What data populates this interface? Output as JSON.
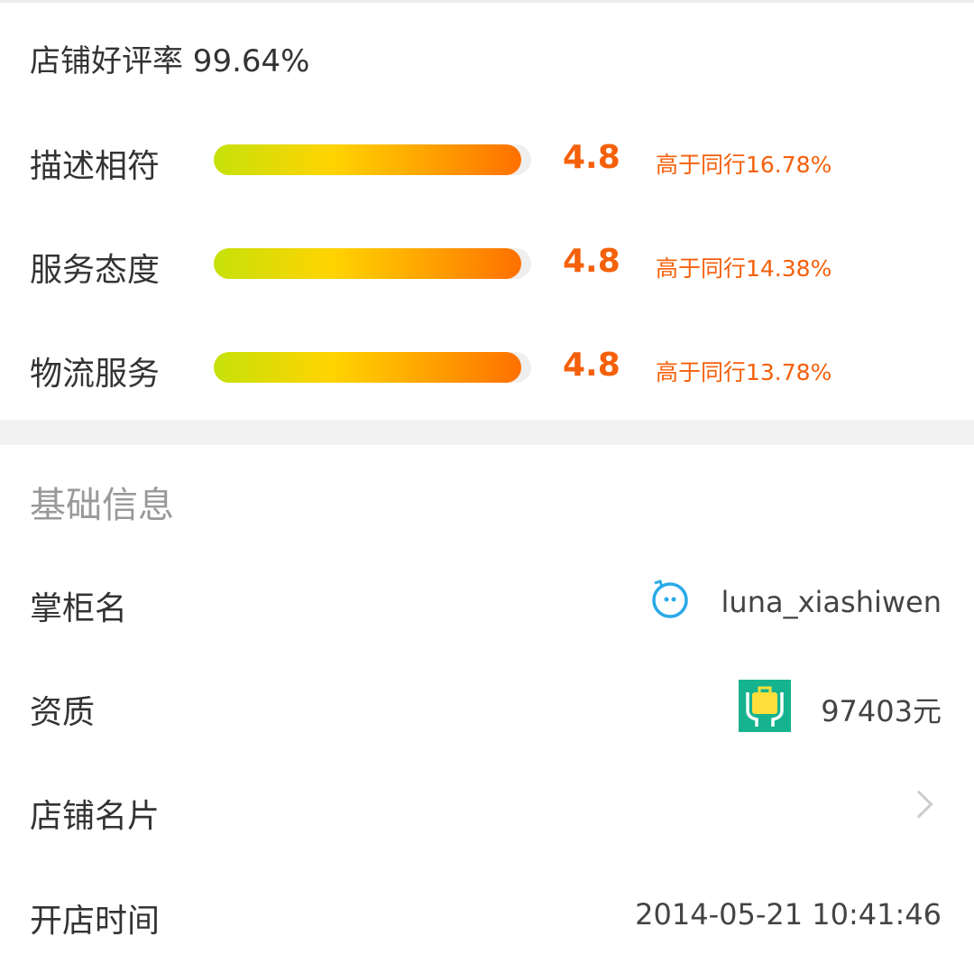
{
  "shop_rating": {
    "title": "店铺好评率 99.64%",
    "items": [
      {
        "label": "描述相符",
        "score": "4.8",
        "fill_percent": 97,
        "compare": "高于同行16.78%"
      },
      {
        "label": "服务态度",
        "score": "4.8",
        "fill_percent": 97,
        "compare": "高于同行14.38%"
      },
      {
        "label": "物流服务",
        "score": "4.8",
        "fill_percent": 97,
        "compare": "高于同行13.78%"
      }
    ]
  },
  "basic_info": {
    "heading": "基础信息",
    "owner": {
      "label": "掌柜名",
      "value": "luna_xiashiwen",
      "icon": "wangwang-chat-icon"
    },
    "qualification": {
      "label": "资质",
      "value": "97403元",
      "icon": "deposit-briefcase-icon"
    },
    "card": {
      "label": "店铺名片",
      "icon": "chevron-right-icon"
    },
    "opened": {
      "label": "开店时间",
      "value": "2014-05-21 10:41:46"
    }
  },
  "colors": {
    "accent": "#f5600a",
    "heading_gray": "#999999",
    "icon_blue": "#29a9e8",
    "icon_green": "#16b38f"
  }
}
